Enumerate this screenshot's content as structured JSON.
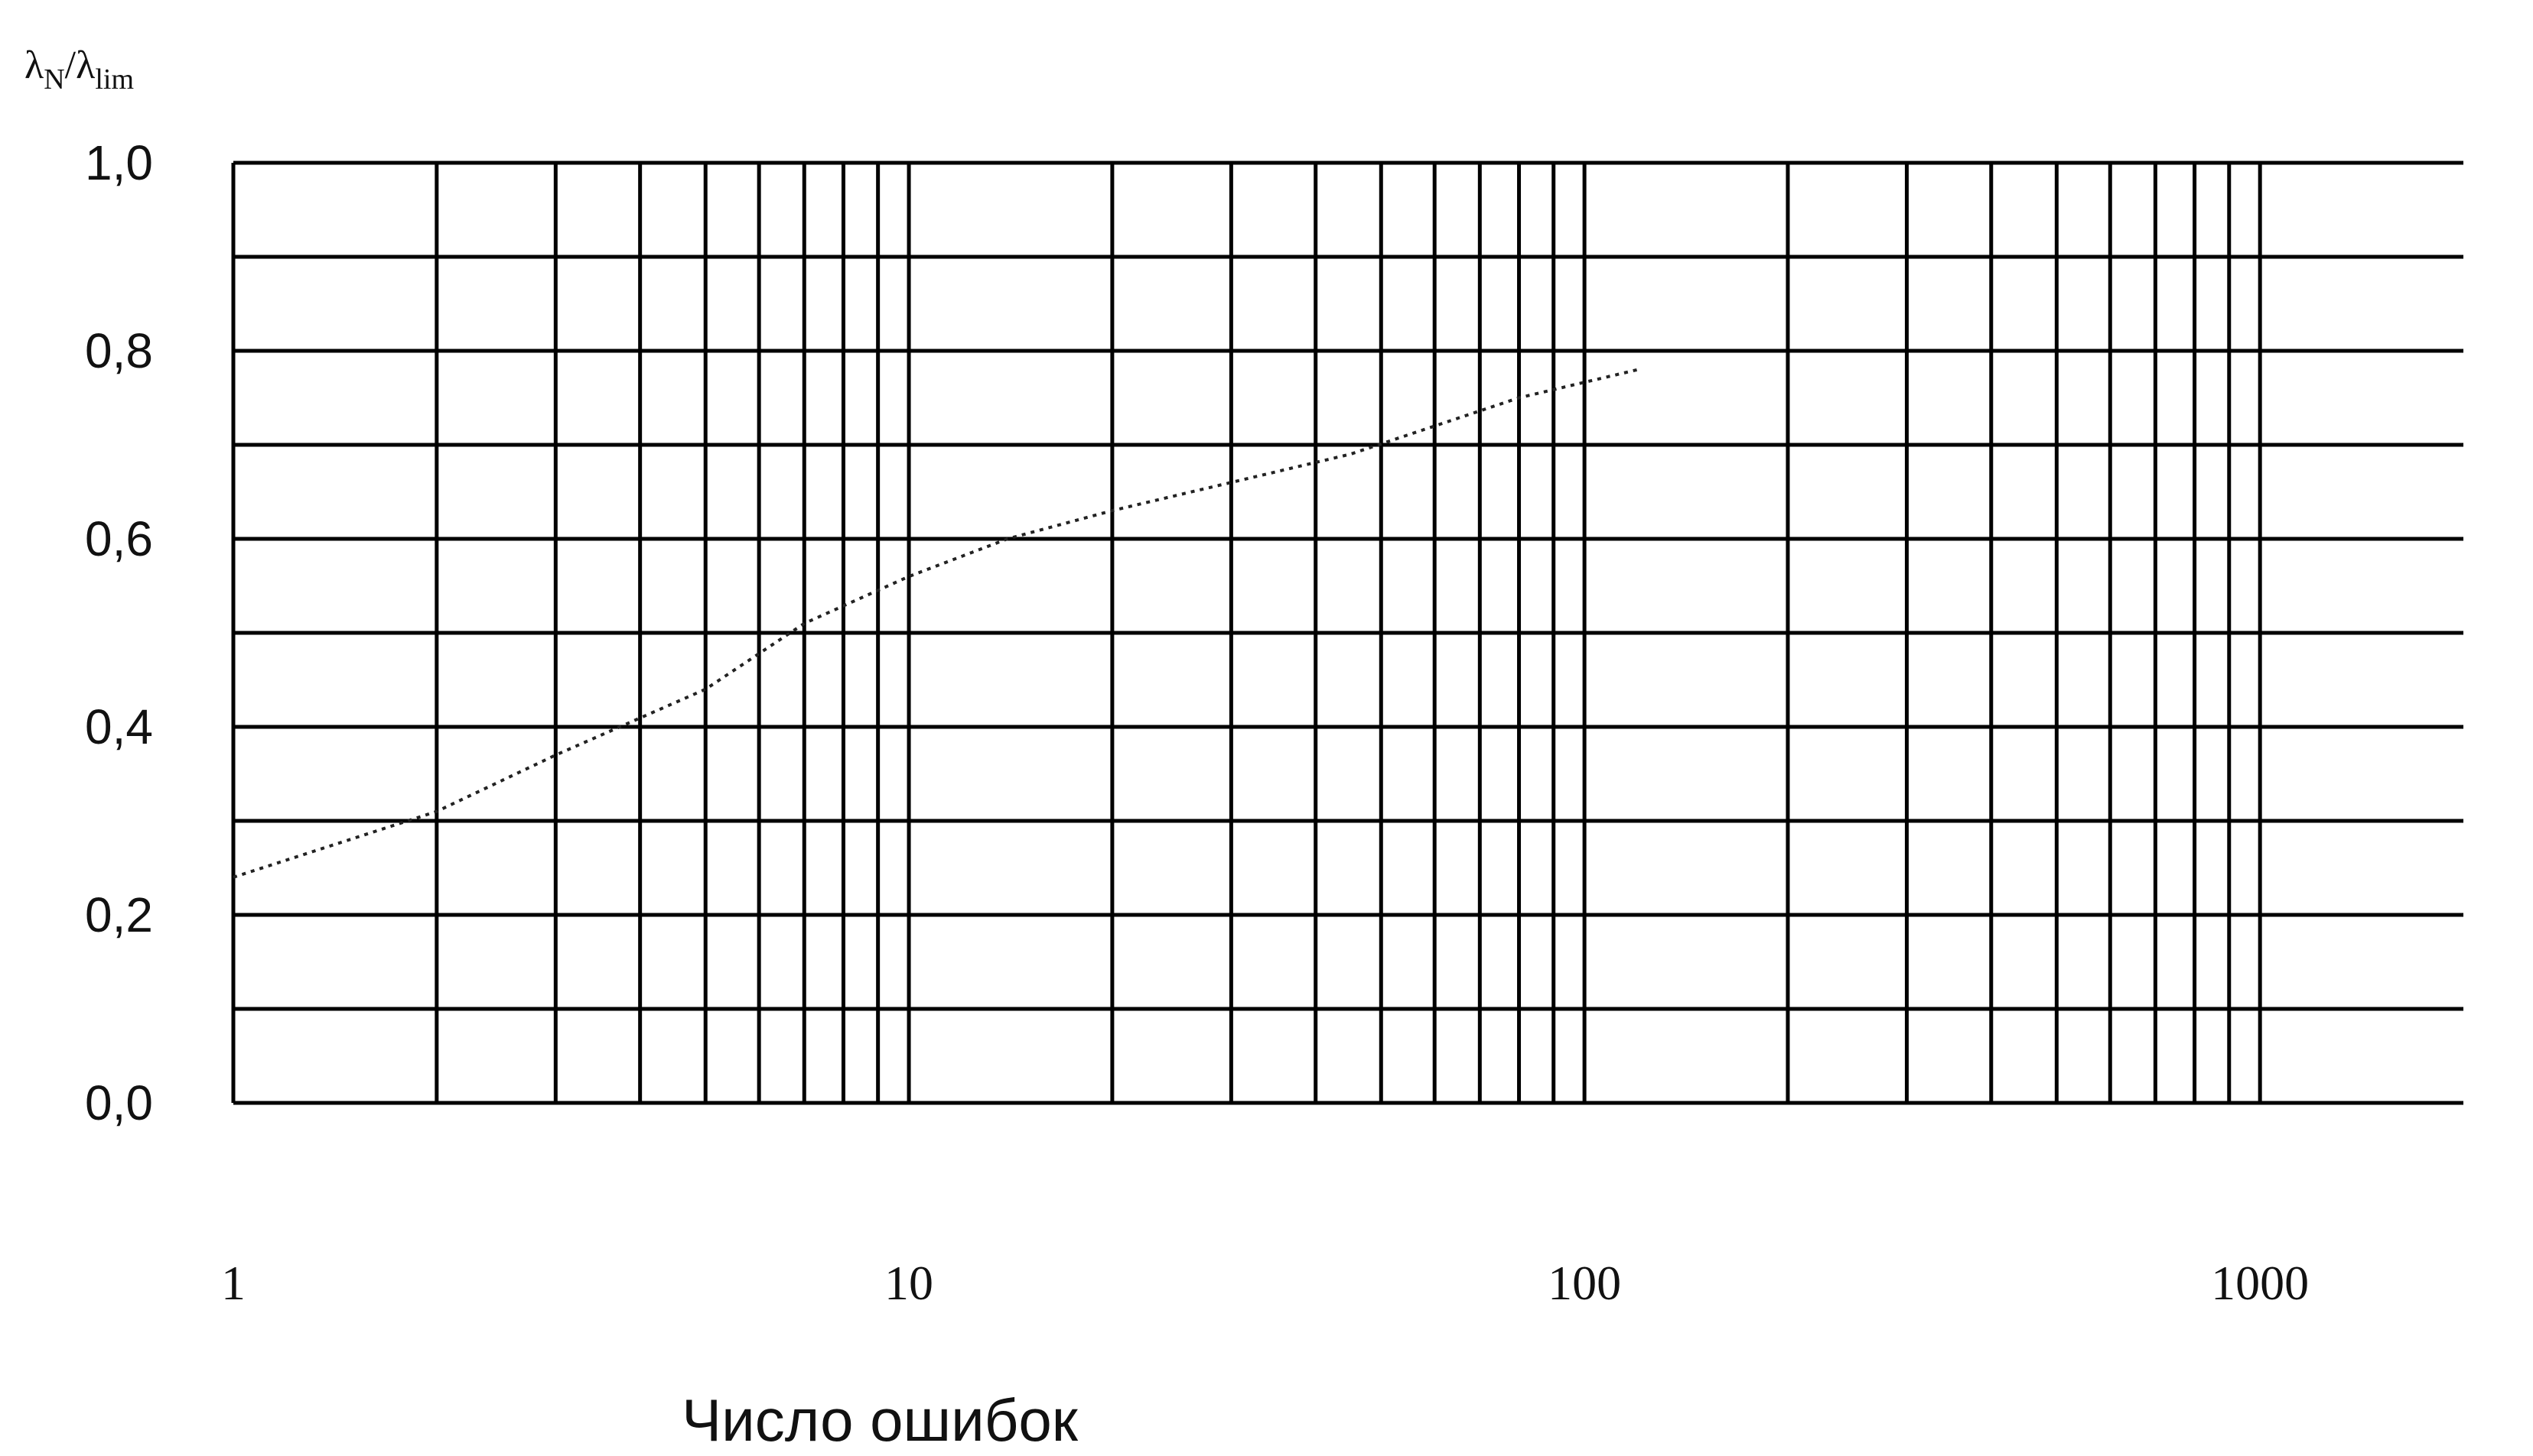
{
  "chart_data": {
    "type": "line",
    "title": "",
    "xlabel": "Число ошибок",
    "ylabel": "λN/λlim",
    "ylabel_parts": {
      "main": "λ",
      "sub1": "N",
      "sep": "/λ",
      "sub2": "lim"
    },
    "x_scale": "log",
    "xlim": [
      1,
      2000
    ],
    "ylim": [
      0.0,
      1.0
    ],
    "x_ticks": [
      1,
      10,
      100,
      1000
    ],
    "x_tick_labels": [
      "1",
      "10",
      "100",
      "1000"
    ],
    "y_ticks": [
      0.0,
      0.2,
      0.4,
      0.6,
      0.8,
      1.0
    ],
    "y_tick_labels": [
      "0,0",
      "0,2",
      "0,4",
      "0,6",
      "0,8",
      "1,0"
    ],
    "grid": true,
    "series": [
      {
        "x": [
          1,
          2,
          3,
          5,
          7,
          10,
          14,
          20,
          30,
          45,
          60,
          80,
          120
        ],
        "y": [
          0.24,
          0.31,
          0.37,
          0.44,
          0.51,
          0.56,
          0.6,
          0.63,
          0.66,
          0.69,
          0.72,
          0.75,
          0.78
        ]
      }
    ]
  }
}
